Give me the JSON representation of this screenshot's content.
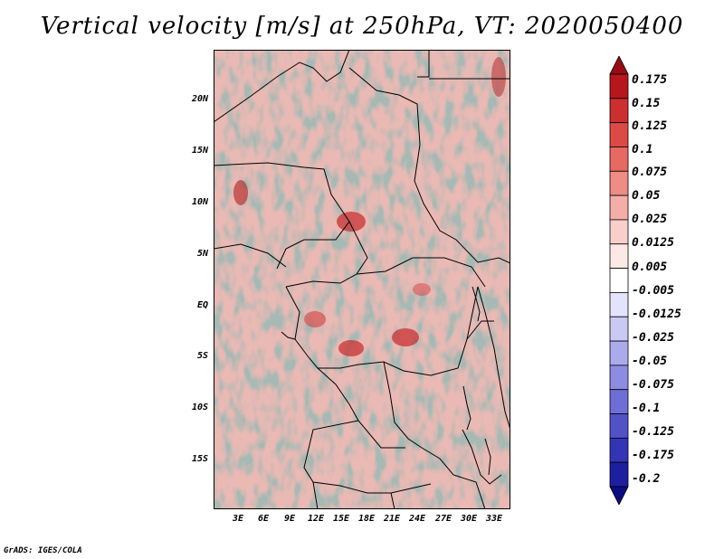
{
  "title": "Vertical velocity [m/s] at 250hPa, VT: 2020050400",
  "credit": "GrADS: IGES/COLA",
  "lat_labels": [
    "20N",
    "15N",
    "10N",
    "5N",
    "EQ",
    "5S",
    "10S",
    "15S"
  ],
  "lon_labels": [
    "3E",
    "6E",
    "9E",
    "12E",
    "15E",
    "18E",
    "21E",
    "24E",
    "27E",
    "30E",
    "33E"
  ],
  "colorbar": {
    "labels": [
      "0.175",
      "0.15",
      "0.125",
      "0.1",
      "0.075",
      "0.05",
      "0.025",
      "0.0125",
      "0.005",
      "-0.005",
      "-0.0125",
      "-0.025",
      "-0.05",
      "-0.075",
      "-0.1",
      "-0.125",
      "-0.175",
      "-0.2"
    ],
    "colors": [
      "#9a0b14",
      "#b7161d",
      "#cc2f30",
      "#dd4a45",
      "#e66a62",
      "#ee8c85",
      "#f4aea8",
      "#f9cfca",
      "#fce9e6",
      "#ffffff",
      "#e3e3fb",
      "#c9c9f4",
      "#ababec",
      "#8c8ce2",
      "#6e6ed6",
      "#5252c8",
      "#3434b6",
      "#1e1ea0",
      "#0c0c82"
    ]
  }
}
